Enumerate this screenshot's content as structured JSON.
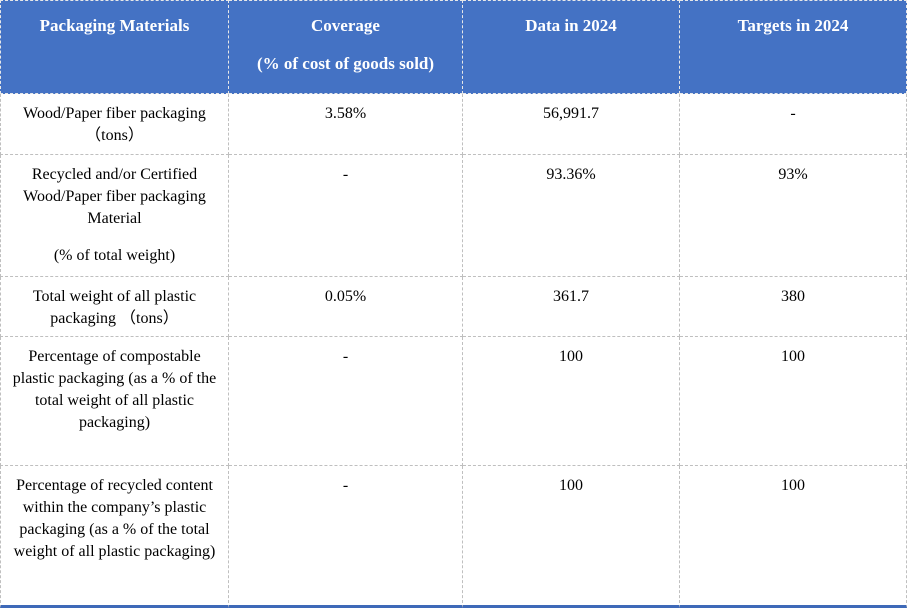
{
  "table": {
    "headers": [
      {
        "label": "Packaging Materials",
        "sub": ""
      },
      {
        "label": "Coverage",
        "sub": "(% of cost of goods sold)"
      },
      {
        "label": "Data in 2024",
        "sub": ""
      },
      {
        "label": "Targets in 2024",
        "sub": ""
      }
    ],
    "rows": [
      {
        "material": "Wood/Paper fiber packaging （tons）",
        "note": "",
        "coverage": "3.58%",
        "data": "56,991.7",
        "target": "-"
      },
      {
        "material": "Recycled and/or Certified Wood/Paper fiber packaging Material",
        "note": "(% of total weight)",
        "coverage": "-",
        "data": "93.36%",
        "target": "93%"
      },
      {
        "material": "Total weight of all plastic packaging （tons）",
        "note": "",
        "coverage": "0.05%",
        "data": "361.7",
        "target": "380"
      },
      {
        "material": "Percentage of compostable plastic packaging (as a % of the total weight of all plastic packaging)",
        "note": "",
        "coverage": "-",
        "data": "100",
        "target": "100"
      },
      {
        "material": "Percentage of recycled content within the company’s plastic packaging (as a % of the total weight of all plastic packaging)",
        "note": "",
        "coverage": "-",
        "data": "100",
        "target": "100"
      }
    ]
  },
  "colors": {
    "header_bg": "#4472C4",
    "header_text": "#FFFFFF",
    "header_border": "#E8E8E8",
    "body_text": "#000000",
    "border_dashed": "#BFBFBF",
    "bottom_line": "#3E69B8",
    "page_bg": "#FFFFFF"
  }
}
